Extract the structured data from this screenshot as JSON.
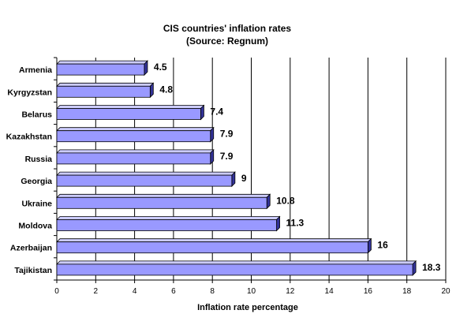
{
  "chart_data": {
    "type": "bar",
    "orientation": "horizontal",
    "title": "CIS countries' inflation rates",
    "subtitle": "(Source: Regnum)",
    "xlabel": "Inflation rate percentage",
    "ylabel": "",
    "categories": [
      "Armenia",
      "Kyrgyzstan",
      "Belarus",
      "Kazakhstan",
      "Russia",
      "Georgia",
      "Ukraine",
      "Moldova",
      "Azerbaijan",
      "Tajikistan"
    ],
    "values": [
      4.5,
      4.8,
      7.4,
      7.9,
      7.9,
      9,
      10.8,
      11.3,
      16,
      18.3
    ],
    "value_labels": [
      "4.5",
      "4.8",
      "7.4",
      "7.9",
      "7.9",
      "9",
      "10.8",
      "11.3",
      "16",
      "18.3"
    ],
    "xlim": [
      0,
      20
    ],
    "x_ticks": [
      "0",
      "2",
      "4",
      "6",
      "8",
      "10",
      "12",
      "14",
      "16",
      "18",
      "20"
    ],
    "grid": "vertical",
    "legend": "none",
    "colors": {
      "bar_front": "#9999ff",
      "bar_top": "#ccccff",
      "bar_side": "#333399",
      "outline": "#000000",
      "grid": "#000000"
    }
  }
}
